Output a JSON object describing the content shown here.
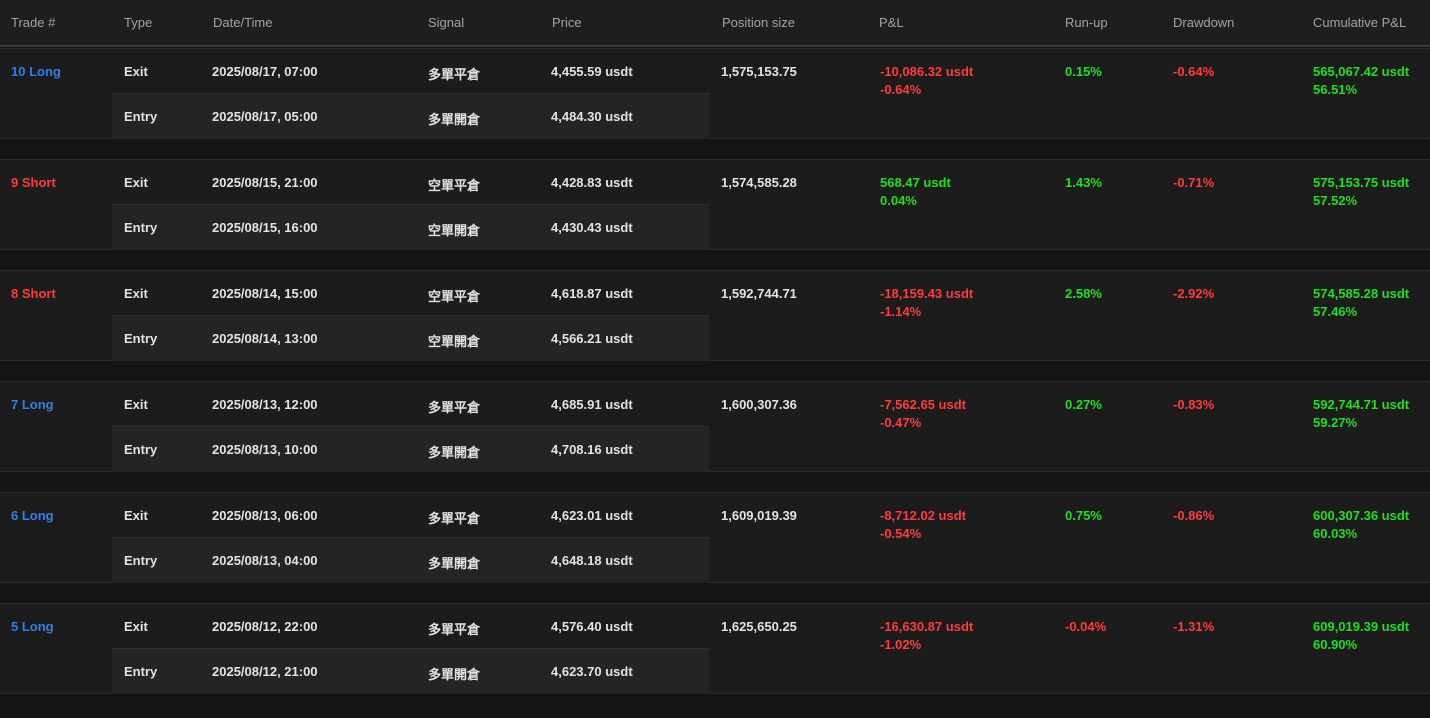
{
  "headers": {
    "trade": "Trade #",
    "type": "Type",
    "datetime": "Date/Time",
    "signal": "Signal",
    "price": "Price",
    "position_size": "Position size",
    "pnl": "P&L",
    "runup": "Run-up",
    "drawdown": "Drawdown",
    "cumulative": "Cumulative P&L"
  },
  "colors": {
    "long": "#2d7ff0",
    "short": "#ff3b3b",
    "negative": "#ff3b3b",
    "positive": "#1fe01f"
  },
  "trades": [
    {
      "label": "10 Long",
      "side": "long",
      "exit": {
        "type": "Exit",
        "datetime": "2025/08/17, 07:00",
        "signal": "多單平倉",
        "price": "4,455.59 usdt"
      },
      "entry": {
        "type": "Entry",
        "datetime": "2025/08/17, 05:00",
        "signal": "多單開倉",
        "price": "4,484.30 usdt"
      },
      "position_size": "1,575,153.75",
      "pnl": "-10,086.32 usdt",
      "pnl_pct": "-0.64%",
      "pnl_sign": "negative",
      "runup": "0.15%",
      "runup_sign": "positive",
      "drawdown": "-0.64%",
      "cum": "565,067.42 usdt",
      "cum_pct": "56.51%"
    },
    {
      "label": "9 Short",
      "side": "short",
      "exit": {
        "type": "Exit",
        "datetime": "2025/08/15, 21:00",
        "signal": "空單平倉",
        "price": "4,428.83 usdt"
      },
      "entry": {
        "type": "Entry",
        "datetime": "2025/08/15, 16:00",
        "signal": "空單開倉",
        "price": "4,430.43 usdt"
      },
      "position_size": "1,574,585.28",
      "pnl": "568.47 usdt",
      "pnl_pct": "0.04%",
      "pnl_sign": "positive",
      "runup": "1.43%",
      "runup_sign": "positive",
      "drawdown": "-0.71%",
      "cum": "575,153.75 usdt",
      "cum_pct": "57.52%"
    },
    {
      "label": "8 Short",
      "side": "short",
      "exit": {
        "type": "Exit",
        "datetime": "2025/08/14, 15:00",
        "signal": "空單平倉",
        "price": "4,618.87 usdt"
      },
      "entry": {
        "type": "Entry",
        "datetime": "2025/08/14, 13:00",
        "signal": "空單開倉",
        "price": "4,566.21 usdt"
      },
      "position_size": "1,592,744.71",
      "pnl": "-18,159.43 usdt",
      "pnl_pct": "-1.14%",
      "pnl_sign": "negative",
      "runup": "2.58%",
      "runup_sign": "positive",
      "drawdown": "-2.92%",
      "cum": "574,585.28 usdt",
      "cum_pct": "57.46%"
    },
    {
      "label": "7 Long",
      "side": "long",
      "exit": {
        "type": "Exit",
        "datetime": "2025/08/13, 12:00",
        "signal": "多單平倉",
        "price": "4,685.91 usdt"
      },
      "entry": {
        "type": "Entry",
        "datetime": "2025/08/13, 10:00",
        "signal": "多單開倉",
        "price": "4,708.16 usdt"
      },
      "position_size": "1,600,307.36",
      "pnl": "-7,562.65 usdt",
      "pnl_pct": "-0.47%",
      "pnl_sign": "negative",
      "runup": "0.27%",
      "runup_sign": "positive",
      "drawdown": "-0.83%",
      "cum": "592,744.71 usdt",
      "cum_pct": "59.27%"
    },
    {
      "label": "6 Long",
      "side": "long",
      "exit": {
        "type": "Exit",
        "datetime": "2025/08/13, 06:00",
        "signal": "多單平倉",
        "price": "4,623.01 usdt"
      },
      "entry": {
        "type": "Entry",
        "datetime": "2025/08/13, 04:00",
        "signal": "多單開倉",
        "price": "4,648.18 usdt"
      },
      "position_size": "1,609,019.39",
      "pnl": "-8,712.02 usdt",
      "pnl_pct": "-0.54%",
      "pnl_sign": "negative",
      "runup": "0.75%",
      "runup_sign": "positive",
      "drawdown": "-0.86%",
      "cum": "600,307.36 usdt",
      "cum_pct": "60.03%"
    },
    {
      "label": "5 Long",
      "side": "long",
      "exit": {
        "type": "Exit",
        "datetime": "2025/08/12, 22:00",
        "signal": "多單平倉",
        "price": "4,576.40 usdt"
      },
      "entry": {
        "type": "Entry",
        "datetime": "2025/08/12, 21:00",
        "signal": "多單開倉",
        "price": "4,623.70 usdt"
      },
      "position_size": "1,625,650.25",
      "pnl": "-16,630.87 usdt",
      "pnl_pct": "-1.02%",
      "pnl_sign": "negative",
      "runup": "-0.04%",
      "runup_sign": "negative",
      "drawdown": "-1.31%",
      "cum": "609,019.39 usdt",
      "cum_pct": "60.90%"
    }
  ]
}
